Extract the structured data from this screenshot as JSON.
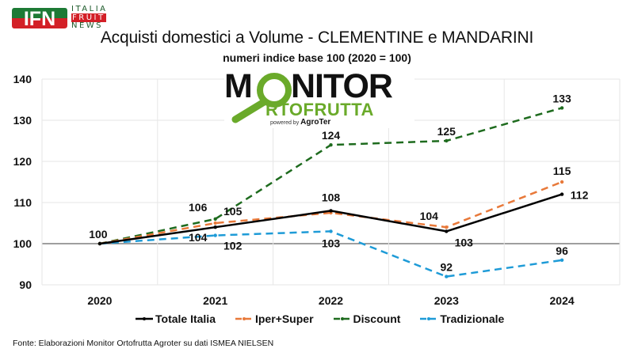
{
  "branding": {
    "ifn_mark": "IFN",
    "ifn_lines": [
      "ITALIA",
      "FRUIT",
      "NEWS"
    ],
    "monitor_word1": "MONITOR",
    "monitor_word2": "RTOFRUTTA",
    "monitor_powered": "powered by",
    "monitor_brand": "AgroTer"
  },
  "source": "Fonte: Elaborazioni Monitor Ortofrutta Agroter su dati ISMEA NIELSEN",
  "colors": {
    "totale": "#000000",
    "iper": "#e8793a",
    "discount": "#1e6b1e",
    "tradizionale": "#1e9bd7",
    "grid": "#e6e6e6",
    "baseline": "#666666",
    "ifn_green": "#1d7a35",
    "ifn_red": "#d32027",
    "monitor_green": "#6aaa2a"
  },
  "chart_data": {
    "type": "line",
    "title": "Acquisti domestici a Volume - CLEMENTINE e MANDARINI",
    "subtitle": "numeri indice base 100 (2020 = 100)",
    "xlabel": "",
    "ylabel": "",
    "categories": [
      "2020",
      "2021",
      "2022",
      "2023",
      "2024"
    ],
    "ylim": [
      90,
      140
    ],
    "yticks": [
      90,
      100,
      110,
      120,
      130,
      140
    ],
    "grid": true,
    "legend_position": "bottom",
    "series": [
      {
        "name": "Totale Italia",
        "key": "totale",
        "style": "solid",
        "values": [
          100,
          104,
          108,
          103,
          112
        ],
        "labels": [
          "100",
          "104",
          "108",
          "103",
          "112"
        ],
        "label_pos": [
          "above",
          "below",
          "above",
          "below",
          "below"
        ]
      },
      {
        "name": "Iper+Super",
        "key": "iper",
        "style": "dashed",
        "values": [
          100,
          105,
          107.5,
          104,
          115
        ],
        "labels": [
          "",
          "105",
          "",
          "104",
          "115"
        ],
        "label_pos": [
          "above",
          "above",
          "above",
          "above",
          "above"
        ]
      },
      {
        "name": "Discount",
        "key": "discount",
        "style": "dashed",
        "values": [
          100,
          106,
          124,
          125,
          133
        ],
        "labels": [
          "",
          "106",
          "124",
          "125",
          "133"
        ],
        "label_pos": [
          "above",
          "above",
          "above",
          "above",
          "above"
        ]
      },
      {
        "name": "Tradizionale",
        "key": "tradizionale",
        "style": "dashed",
        "values": [
          100,
          102,
          103,
          92,
          96
        ],
        "labels": [
          "",
          "102",
          "103",
          "92",
          "96"
        ],
        "label_pos": [
          "below",
          "below",
          "below",
          "above",
          "above"
        ]
      }
    ]
  }
}
